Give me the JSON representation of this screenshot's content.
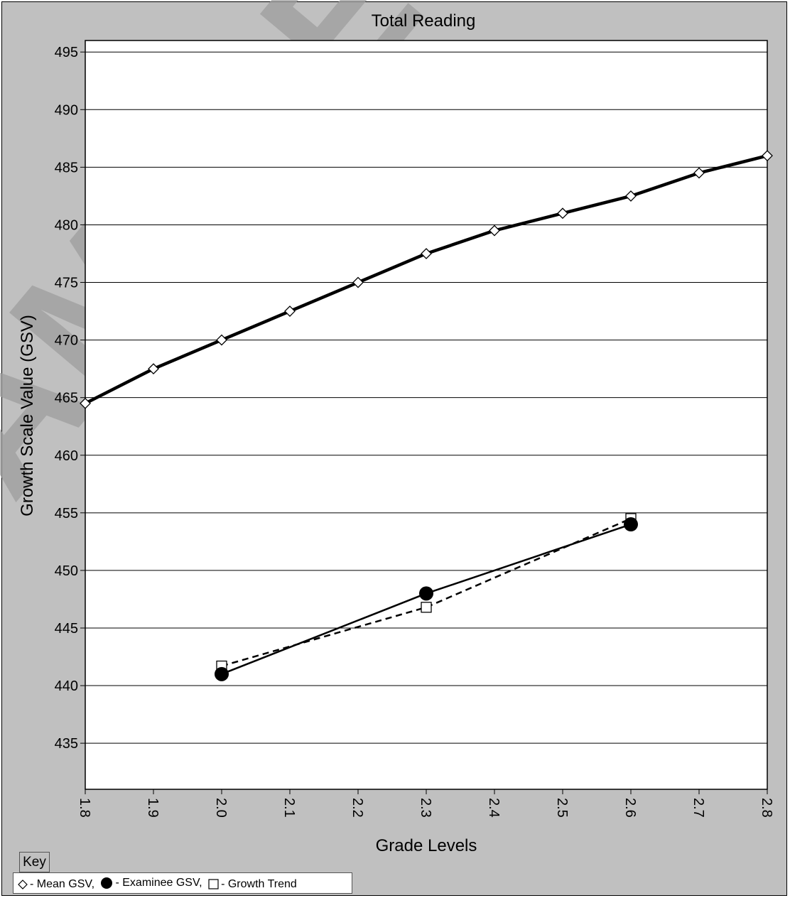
{
  "chart_data": {
    "type": "line",
    "title": "Total Reading",
    "xlabel": "Grade Levels",
    "ylabel": "Growth Scale Value (GSV)",
    "x_ticks": [
      "1.8",
      "1.9",
      "2.0",
      "2.1",
      "2.2",
      "2.3",
      "2.4",
      "2.5",
      "2.6",
      "2.7",
      "2.8"
    ],
    "y_ticks": [
      435,
      440,
      445,
      450,
      455,
      460,
      465,
      470,
      475,
      480,
      485,
      490,
      495
    ],
    "xlim": [
      1.8,
      2.8
    ],
    "ylim": [
      431,
      496
    ],
    "grid": "horizontal",
    "series": [
      {
        "name": "Mean GSV",
        "marker": "diamond",
        "line": "solid-thick",
        "x": [
          1.8,
          1.9,
          2.0,
          2.1,
          2.2,
          2.3,
          2.4,
          2.5,
          2.6,
          2.7,
          2.8
        ],
        "y": [
          464.5,
          467.5,
          470,
          472.5,
          475,
          477.5,
          479.5,
          481,
          482.5,
          484.5,
          486
        ]
      },
      {
        "name": "Examinee GSV",
        "marker": "filled-circle",
        "line": "solid",
        "x": [
          2.0,
          2.3,
          2.6
        ],
        "y": [
          441,
          448,
          454
        ]
      },
      {
        "name": "Growth Trend",
        "marker": "square",
        "line": "dashed",
        "x": [
          2.0,
          2.3,
          2.6
        ],
        "y": [
          441.7,
          446.8,
          454.5
        ]
      }
    ]
  },
  "key": {
    "label": "Key",
    "items": [
      {
        "text": " - Mean GSV, ",
        "icon": "diamond-icon"
      },
      {
        "text": " - Examinee GSV, ",
        "icon": "filled-circle-icon"
      },
      {
        "text": " - Growth Trend",
        "icon": "square-icon"
      }
    ]
  },
  "watermark": "SAMPLE"
}
